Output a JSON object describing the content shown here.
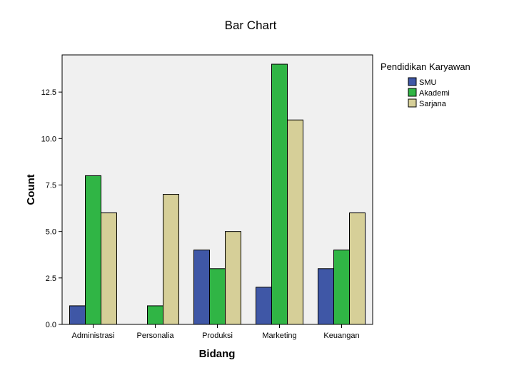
{
  "chart_data": {
    "type": "bar",
    "title": "Bar Chart",
    "xlabel": "Bidang",
    "ylabel": "Count",
    "categories": [
      "Administrasi",
      "Personalia",
      "Produksi",
      "Marketing",
      "Keuangan"
    ],
    "series": [
      {
        "name": "SMU",
        "color": "#3f57a6",
        "values": [
          1,
          0,
          4,
          2,
          3
        ]
      },
      {
        "name": "Akademi",
        "color": "#30b545",
        "values": [
          8,
          1,
          3,
          14,
          4
        ]
      },
      {
        "name": "Sarjana",
        "color": "#d6cf98",
        "values": [
          6,
          7,
          5,
          11,
          6
        ]
      }
    ],
    "ylim": [
      0,
      14.5
    ],
    "yticks": [
      "0.0",
      "2.5",
      "5.0",
      "7.5",
      "10.0",
      "12.5"
    ],
    "legend_title": "Pendidikan Karyawan",
    "legend_position": "right",
    "plot_background": "#f0f0f0",
    "grid": false
  }
}
